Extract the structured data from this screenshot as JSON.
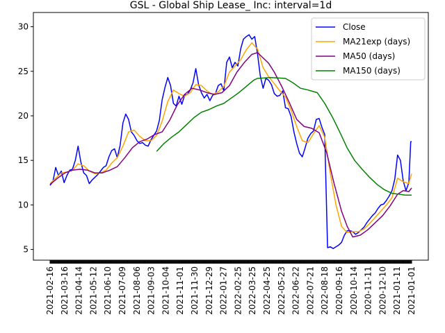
{
  "chart_data": {
    "type": "line",
    "title": "GSL - Global Ship Lease_ Inc: interval=1d",
    "xlabel": "",
    "ylabel": "",
    "ylim": [
      3.8,
      31.6
    ],
    "yticks": [
      5,
      10,
      15,
      20,
      25,
      30
    ],
    "x_tick_labels": [
      "2021-02-16",
      "2021-03-16",
      "2021-04-14",
      "2021-05-12",
      "2021-06-10",
      "2021-07-09",
      "2021-08-06",
      "2021-09-03",
      "2021-10-04",
      "2021-11-01",
      "2021-11-30",
      "2021-12-29",
      "2022-01-27",
      "2022-02-25",
      "2022-03-25",
      "2022-04-25",
      "2022-05-23",
      "2022-06-22",
      "2022-07-21",
      "2022-08-18",
      "2020-09-16",
      "2020-10-14",
      "2020-11-11",
      "2020-12-10",
      "2021-01-11",
      "2021-01-01"
    ],
    "n_points": 500,
    "legend_position": "upper right",
    "series": [
      {
        "name": "Close",
        "color": "#0000ff",
        "points": [
          [
            0,
            12.2
          ],
          [
            3,
            12.6
          ],
          [
            6,
            14.2
          ],
          [
            9,
            13.3
          ],
          [
            12,
            13.8
          ],
          [
            15,
            12.5
          ],
          [
            18,
            13.3
          ],
          [
            21,
            13.9
          ],
          [
            24,
            14.0
          ],
          [
            27,
            15.0
          ],
          [
            30,
            16.6
          ],
          [
            33,
            14.8
          ],
          [
            36,
            13.6
          ],
          [
            39,
            13.3
          ],
          [
            42,
            12.4
          ],
          [
            45,
            12.8
          ],
          [
            48,
            13.1
          ],
          [
            51,
            13.4
          ],
          [
            54,
            13.8
          ],
          [
            57,
            14.2
          ],
          [
            60,
            14.4
          ],
          [
            63,
            15.4
          ],
          [
            66,
            16.1
          ],
          [
            69,
            16.3
          ],
          [
            72,
            15.3
          ],
          [
            75,
            16.7
          ],
          [
            78,
            19.2
          ],
          [
            81,
            20.2
          ],
          [
            84,
            19.6
          ],
          [
            87,
            18.2
          ],
          [
            90,
            17.8
          ],
          [
            93,
            17.2
          ],
          [
            96,
            16.9
          ],
          [
            99,
            17.0
          ],
          [
            102,
            16.7
          ],
          [
            105,
            16.6
          ],
          [
            108,
            17.3
          ],
          [
            111,
            17.8
          ],
          [
            114,
            18.3
          ],
          [
            117,
            19.5
          ],
          [
            120,
            21.8
          ],
          [
            123,
            23.2
          ],
          [
            126,
            24.3
          ],
          [
            129,
            23.4
          ],
          [
            132,
            21.4
          ],
          [
            135,
            21.1
          ],
          [
            138,
            22.2
          ],
          [
            141,
            21.3
          ],
          [
            144,
            22.3
          ],
          [
            147,
            22.4
          ],
          [
            150,
            22.9
          ],
          [
            153,
            23.7
          ],
          [
            156,
            25.3
          ],
          [
            159,
            23.5
          ],
          [
            162,
            22.6
          ],
          [
            165,
            22.0
          ],
          [
            168,
            22.4
          ],
          [
            171,
            21.7
          ],
          [
            174,
            22.3
          ],
          [
            177,
            22.5
          ],
          [
            180,
            23.4
          ],
          [
            183,
            23.6
          ],
          [
            186,
            22.8
          ],
          [
            189,
            26.0
          ],
          [
            192,
            26.6
          ],
          [
            195,
            25.4
          ],
          [
            198,
            26.0
          ],
          [
            201,
            25.6
          ],
          [
            204,
            27.5
          ],
          [
            207,
            28.6
          ],
          [
            210,
            28.9
          ],
          [
            213,
            29.1
          ],
          [
            216,
            28.6
          ],
          [
            219,
            28.9
          ],
          [
            222,
            27.0
          ],
          [
            225,
            24.5
          ],
          [
            228,
            23.1
          ],
          [
            231,
            24.2
          ],
          [
            234,
            24.0
          ],
          [
            237,
            23.5
          ],
          [
            240,
            22.5
          ],
          [
            243,
            22.2
          ],
          [
            246,
            22.3
          ],
          [
            249,
            22.8
          ],
          [
            252,
            20.9
          ],
          [
            255,
            20.8
          ],
          [
            258,
            19.9
          ],
          [
            261,
            18.2
          ],
          [
            264,
            16.9
          ],
          [
            267,
            15.8
          ],
          [
            270,
            15.4
          ],
          [
            273,
            16.4
          ],
          [
            276,
            17.5
          ],
          [
            279,
            18.0
          ],
          [
            282,
            18.3
          ],
          [
            285,
            19.6
          ],
          [
            288,
            19.7
          ],
          [
            291,
            18.7
          ],
          [
            294,
            17.9
          ],
          [
            297,
            5.2
          ],
          [
            300,
            5.3
          ],
          [
            303,
            5.1
          ],
          [
            306,
            5.3
          ],
          [
            309,
            5.5
          ],
          [
            312,
            5.8
          ],
          [
            315,
            6.6
          ],
          [
            318,
            7.1
          ],
          [
            321,
            7.1
          ],
          [
            324,
            7.0
          ],
          [
            327,
            6.7
          ],
          [
            330,
            6.9
          ],
          [
            333,
            7.2
          ],
          [
            336,
            7.5
          ],
          [
            339,
            8.0
          ],
          [
            342,
            8.4
          ],
          [
            345,
            8.8
          ],
          [
            348,
            9.1
          ],
          [
            351,
            9.6
          ],
          [
            354,
            10.0
          ],
          [
            357,
            10.1
          ],
          [
            360,
            10.5
          ],
          [
            363,
            11.0
          ],
          [
            366,
            11.6
          ],
          [
            369,
            12.9
          ],
          [
            372,
            15.6
          ],
          [
            375,
            15.0
          ],
          [
            378,
            12.7
          ],
          [
            381,
            11.6
          ],
          [
            384,
            12.5
          ],
          [
            386,
            17.1
          ],
          [
            387,
            17.1
          ]
        ]
      },
      {
        "name": "MA21exp (days)",
        "color": "#ffa500",
        "points": [
          [
            0,
            12.4
          ],
          [
            6,
            13.0
          ],
          [
            12,
            13.6
          ],
          [
            18,
            13.7
          ],
          [
            24,
            13.9
          ],
          [
            30,
            14.6
          ],
          [
            36,
            14.4
          ],
          [
            42,
            13.8
          ],
          [
            48,
            13.5
          ],
          [
            54,
            13.6
          ],
          [
            60,
            13.9
          ],
          [
            66,
            14.7
          ],
          [
            72,
            15.3
          ],
          [
            78,
            16.6
          ],
          [
            84,
            18.2
          ],
          [
            90,
            18.4
          ],
          [
            96,
            17.7
          ],
          [
            102,
            17.2
          ],
          [
            108,
            17.2
          ],
          [
            114,
            17.8
          ],
          [
            120,
            19.4
          ],
          [
            126,
            21.6
          ],
          [
            132,
            22.9
          ],
          [
            138,
            22.5
          ],
          [
            144,
            22.2
          ],
          [
            150,
            22.6
          ],
          [
            156,
            23.5
          ],
          [
            162,
            23.4
          ],
          [
            168,
            22.8
          ],
          [
            174,
            22.4
          ],
          [
            180,
            22.7
          ],
          [
            186,
            23.3
          ],
          [
            192,
            24.9
          ],
          [
            198,
            25.6
          ],
          [
            204,
            26.3
          ],
          [
            210,
            27.4
          ],
          [
            216,
            28.2
          ],
          [
            222,
            27.5
          ],
          [
            228,
            25.4
          ],
          [
            234,
            24.4
          ],
          [
            240,
            23.6
          ],
          [
            246,
            22.8
          ],
          [
            252,
            22.1
          ],
          [
            258,
            20.6
          ],
          [
            264,
            18.8
          ],
          [
            270,
            17.2
          ],
          [
            276,
            17.0
          ],
          [
            282,
            18.0
          ],
          [
            288,
            18.9
          ],
          [
            294,
            17.6
          ],
          [
            300,
            13.5
          ],
          [
            306,
            10.0
          ],
          [
            312,
            7.6
          ],
          [
            318,
            6.9
          ],
          [
            324,
            7.0
          ],
          [
            330,
            7.0
          ],
          [
            336,
            7.3
          ],
          [
            342,
            7.9
          ],
          [
            348,
            8.6
          ],
          [
            354,
            9.3
          ],
          [
            360,
            10.0
          ],
          [
            366,
            10.8
          ],
          [
            372,
            13.0
          ],
          [
            378,
            12.6
          ],
          [
            384,
            12.4
          ],
          [
            387,
            13.5
          ]
        ]
      },
      {
        "name": "MA50 (days)",
        "color": "#800080",
        "points": [
          [
            0,
            12.3
          ],
          [
            8,
            13.0
          ],
          [
            16,
            13.6
          ],
          [
            24,
            13.9
          ],
          [
            32,
            14.0
          ],
          [
            40,
            13.9
          ],
          [
            48,
            13.6
          ],
          [
            56,
            13.6
          ],
          [
            64,
            13.9
          ],
          [
            72,
            14.3
          ],
          [
            80,
            15.3
          ],
          [
            88,
            16.4
          ],
          [
            96,
            17.1
          ],
          [
            104,
            17.4
          ],
          [
            112,
            17.9
          ],
          [
            120,
            18.2
          ],
          [
            128,
            19.5
          ],
          [
            136,
            21.2
          ],
          [
            144,
            22.4
          ],
          [
            152,
            23.1
          ],
          [
            160,
            22.9
          ],
          [
            168,
            22.6
          ],
          [
            176,
            22.4
          ],
          [
            184,
            22.6
          ],
          [
            192,
            23.4
          ],
          [
            200,
            24.9
          ],
          [
            208,
            26.0
          ],
          [
            216,
            26.9
          ],
          [
            222,
            27.1
          ],
          [
            228,
            26.5
          ],
          [
            234,
            25.9
          ],
          [
            240,
            24.9
          ],
          [
            248,
            23.3
          ],
          [
            256,
            21.5
          ],
          [
            264,
            19.6
          ],
          [
            272,
            18.8
          ],
          [
            280,
            18.6
          ],
          [
            288,
            18.1
          ],
          [
            296,
            15.9
          ],
          [
            304,
            12.4
          ],
          [
            312,
            9.3
          ],
          [
            318,
            7.6
          ],
          [
            324,
            6.4
          ],
          [
            332,
            6.6
          ],
          [
            340,
            7.2
          ],
          [
            348,
            8.0
          ],
          [
            356,
            8.8
          ],
          [
            364,
            9.9
          ],
          [
            372,
            11.2
          ],
          [
            378,
            11.6
          ],
          [
            384,
            11.5
          ],
          [
            387,
            11.9
          ]
        ]
      },
      {
        "name": "MA150 (days)",
        "color": "#008000",
        "points": [
          [
            114,
            16.0
          ],
          [
            122,
            16.9
          ],
          [
            130,
            17.6
          ],
          [
            138,
            18.2
          ],
          [
            146,
            19.0
          ],
          [
            154,
            19.8
          ],
          [
            162,
            20.4
          ],
          [
            170,
            20.7
          ],
          [
            178,
            21.1
          ],
          [
            186,
            21.4
          ],
          [
            194,
            22.0
          ],
          [
            202,
            22.6
          ],
          [
            210,
            23.3
          ],
          [
            218,
            24.0
          ],
          [
            222,
            24.2
          ],
          [
            236,
            24.3
          ],
          [
            252,
            24.2
          ],
          [
            260,
            23.7
          ],
          [
            268,
            23.1
          ],
          [
            276,
            22.9
          ],
          [
            286,
            22.6
          ],
          [
            294,
            21.4
          ],
          [
            302,
            19.9
          ],
          [
            310,
            18.2
          ],
          [
            318,
            16.4
          ],
          [
            326,
            15.0
          ],
          [
            334,
            14.0
          ],
          [
            342,
            13.1
          ],
          [
            350,
            12.3
          ],
          [
            358,
            11.7
          ],
          [
            366,
            11.3
          ],
          [
            374,
            11.2
          ],
          [
            380,
            11.1
          ],
          [
            387,
            11.1
          ]
        ]
      }
    ]
  }
}
